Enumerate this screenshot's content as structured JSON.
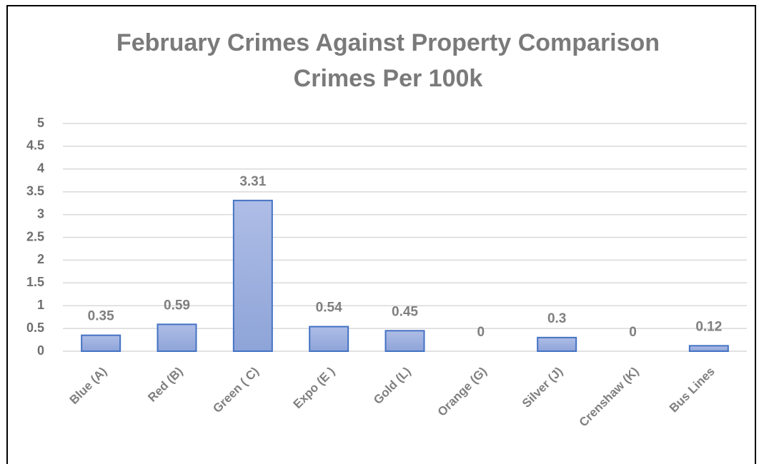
{
  "chart_data": {
    "type": "bar",
    "title": "February Crimes Against Property Comparison",
    "subtitle": "Crimes Per 100k",
    "categories": [
      "Blue (A)",
      "Red (B)",
      "Green ( C)",
      "Expo (E )",
      "Gold (L)",
      "Orange (G)",
      "Silver  (J)",
      "Crenshaw (K)",
      "Bus Lines"
    ],
    "values": [
      0.35,
      0.59,
      3.31,
      0.54,
      0.45,
      0,
      0.3,
      0,
      0.12
    ],
    "color": "#4472c4",
    "ylim": [
      0,
      5
    ],
    "yticks": [
      0,
      0.5,
      1,
      1.5,
      2,
      2.5,
      3,
      3.5,
      4,
      4.5,
      5
    ],
    "grid": true
  }
}
